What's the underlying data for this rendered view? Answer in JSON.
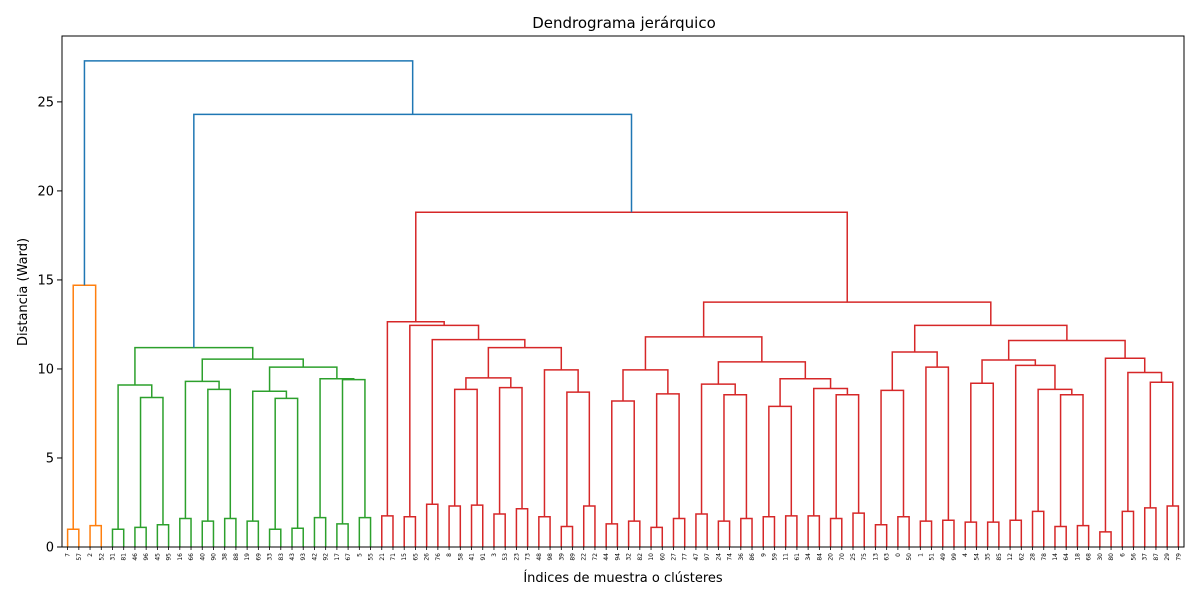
{
  "chart_data": {
    "type": "dendrogram",
    "title": "Dendrograma jerárquico",
    "xlabel": "Índices de muestra o clústeres",
    "ylabel": "Distancia (Ward)",
    "ylim": [
      0,
      28.7
    ],
    "yticks": [
      0,
      5,
      10,
      15,
      20,
      25
    ],
    "grid": false,
    "colors": {
      "orange": "#ff7f0e",
      "green": "#2ca02c",
      "red": "#d62728",
      "blue": "#1f77b4"
    },
    "leaves": [
      "7",
      "57",
      "2",
      "52",
      "31",
      "81",
      "46",
      "96",
      "45",
      "95",
      "16",
      "66",
      "40",
      "90",
      "38",
      "88",
      "19",
      "69",
      "33",
      "83",
      "43",
      "93",
      "42",
      "92",
      "17",
      "67",
      "5",
      "55",
      "21",
      "71",
      "15",
      "65",
      "26",
      "76",
      "8",
      "58",
      "41",
      "91",
      "3",
      "53",
      "23",
      "73",
      "48",
      "98",
      "39",
      "89",
      "22",
      "72",
      "44",
      "94",
      "32",
      "82",
      "10",
      "60",
      "27",
      "77",
      "47",
      "97",
      "24",
      "74",
      "36",
      "86",
      "9",
      "59",
      "11",
      "61",
      "34",
      "84",
      "20",
      "70",
      "25",
      "75",
      "13",
      "63",
      "0",
      "50",
      "1",
      "51",
      "49",
      "99",
      "4",
      "54",
      "35",
      "85",
      "12",
      "62",
      "28",
      "78",
      "14",
      "64",
      "18",
      "68",
      "30",
      "80",
      "6",
      "56",
      "37",
      "87",
      "29",
      "79"
    ],
    "merges": [
      {
        "l": 0,
        "r": 1,
        "h": 1.0,
        "c": "orange"
      },
      {
        "l": 2,
        "r": 3,
        "h": 1.2,
        "c": "orange"
      },
      {
        "l": 100,
        "r": 101,
        "h": 14.7,
        "c": "orange"
      },
      {
        "l": 4,
        "r": 5,
        "h": 1.0,
        "c": "green"
      },
      {
        "l": 6,
        "r": 7,
        "h": 1.1,
        "c": "green"
      },
      {
        "l": 8,
        "r": 9,
        "h": 1.25,
        "c": "green"
      },
      {
        "l": 104,
        "r": 105,
        "h": 8.4,
        "c": "green"
      },
      {
        "l": 103,
        "r": 106,
        "h": 9.1,
        "c": "green"
      },
      {
        "l": 10,
        "r": 11,
        "h": 1.6,
        "c": "green"
      },
      {
        "l": 12,
        "r": 13,
        "h": 1.45,
        "c": "green"
      },
      {
        "l": 14,
        "r": 15,
        "h": 1.6,
        "c": "green"
      },
      {
        "l": 109,
        "r": 110,
        "h": 8.85,
        "c": "green"
      },
      {
        "l": 108,
        "r": 111,
        "h": 9.3,
        "c": "green"
      },
      {
        "l": 16,
        "r": 17,
        "h": 1.45,
        "c": "green"
      },
      {
        "l": 18,
        "r": 19,
        "h": 1.0,
        "c": "green"
      },
      {
        "l": 20,
        "r": 21,
        "h": 1.05,
        "c": "green"
      },
      {
        "l": 114,
        "r": 115,
        "h": 8.35,
        "c": "green"
      },
      {
        "l": 113,
        "r": 116,
        "h": 8.75,
        "c": "green"
      },
      {
        "l": 22,
        "r": 23,
        "h": 1.65,
        "c": "green"
      },
      {
        "l": 24,
        "r": 25,
        "h": 1.3,
        "c": "green"
      },
      {
        "l": 26,
        "r": 27,
        "h": 1.65,
        "c": "green"
      },
      {
        "l": 119,
        "r": 120,
        "h": 9.4,
        "c": "green"
      },
      {
        "l": 118,
        "r": 121,
        "h": 9.45,
        "c": "green"
      },
      {
        "l": 117,
        "r": 122,
        "h": 10.1,
        "c": "green"
      },
      {
        "l": 112,
        "r": 123,
        "h": 10.55,
        "c": "green"
      },
      {
        "l": 107,
        "r": 124,
        "h": 11.2,
        "c": "green"
      },
      {
        "l": 28,
        "r": 29,
        "h": 1.75,
        "c": "red"
      },
      {
        "l": 30,
        "r": 31,
        "h": 1.7,
        "c": "red"
      },
      {
        "l": 32,
        "r": 33,
        "h": 2.4,
        "c": "red"
      },
      {
        "l": 34,
        "r": 35,
        "h": 2.3,
        "c": "red"
      },
      {
        "l": 36,
        "r": 37,
        "h": 2.35,
        "c": "red"
      },
      {
        "l": 129,
        "r": 130,
        "h": 8.85,
        "c": "red"
      },
      {
        "l": 38,
        "r": 39,
        "h": 1.85,
        "c": "red"
      },
      {
        "l": 40,
        "r": 41,
        "h": 2.15,
        "c": "red"
      },
      {
        "l": 132,
        "r": 133,
        "h": 8.95,
        "c": "red"
      },
      {
        "l": 131,
        "r": 134,
        "h": 9.5,
        "c": "red"
      },
      {
        "l": 42,
        "r": 43,
        "h": 1.7,
        "c": "red"
      },
      {
        "l": 44,
        "r": 45,
        "h": 1.15,
        "c": "red"
      },
      {
        "l": 46,
        "r": 47,
        "h": 2.3,
        "c": "red"
      },
      {
        "l": 137,
        "r": 138,
        "h": 8.7,
        "c": "red"
      },
      {
        "l": 136,
        "r": 139,
        "h": 9.95,
        "c": "red"
      },
      {
        "l": 135,
        "r": 140,
        "h": 11.2,
        "c": "red"
      },
      {
        "l": 128,
        "r": 141,
        "h": 11.65,
        "c": "red"
      },
      {
        "l": 127,
        "r": 142,
        "h": 12.45,
        "c": "red"
      },
      {
        "l": 126,
        "r": 143,
        "h": 12.65,
        "c": "red"
      },
      {
        "l": 48,
        "r": 49,
        "h": 1.3,
        "c": "red"
      },
      {
        "l": 50,
        "r": 51,
        "h": 1.45,
        "c": "red"
      },
      {
        "l": 145,
        "r": 146,
        "h": 8.2,
        "c": "red"
      },
      {
        "l": 52,
        "r": 53,
        "h": 1.1,
        "c": "red"
      },
      {
        "l": 54,
        "r": 55,
        "h": 1.6,
        "c": "red"
      },
      {
        "l": 148,
        "r": 149,
        "h": 8.6,
        "c": "red"
      },
      {
        "l": 147,
        "r": 150,
        "h": 9.95,
        "c": "red"
      },
      {
        "l": 56,
        "r": 57,
        "h": 1.85,
        "c": "red"
      },
      {
        "l": 58,
        "r": 59,
        "h": 1.45,
        "c": "red"
      },
      {
        "l": 60,
        "r": 61,
        "h": 1.6,
        "c": "red"
      },
      {
        "l": 153,
        "r": 154,
        "h": 8.55,
        "c": "red"
      },
      {
        "l": 152,
        "r": 155,
        "h": 9.15,
        "c": "red"
      },
      {
        "l": 62,
        "r": 63,
        "h": 1.7,
        "c": "red"
      },
      {
        "l": 64,
        "r": 65,
        "h": 1.75,
        "c": "red"
      },
      {
        "l": 157,
        "r": 158,
        "h": 7.9,
        "c": "red"
      },
      {
        "l": 66,
        "r": 67,
        "h": 1.75,
        "c": "red"
      },
      {
        "l": 68,
        "r": 69,
        "h": 1.6,
        "c": "red"
      },
      {
        "l": 70,
        "r": 71,
        "h": 1.9,
        "c": "red"
      },
      {
        "l": 161,
        "r": 162,
        "h": 8.55,
        "c": "red"
      },
      {
        "l": 160,
        "r": 163,
        "h": 8.9,
        "c": "red"
      },
      {
        "l": 159,
        "r": 164,
        "h": 9.45,
        "c": "red"
      },
      {
        "l": 156,
        "r": 165,
        "h": 10.4,
        "c": "red"
      },
      {
        "l": 151,
        "r": 166,
        "h": 11.8,
        "c": "red"
      },
      {
        "l": 72,
        "r": 73,
        "h": 1.25,
        "c": "red"
      },
      {
        "l": 74,
        "r": 75,
        "h": 1.7,
        "c": "red"
      },
      {
        "l": 168,
        "r": 169,
        "h": 8.8,
        "c": "red"
      },
      {
        "l": 76,
        "r": 77,
        "h": 1.45,
        "c": "red"
      },
      {
        "l": 78,
        "r": 79,
        "h": 1.5,
        "c": "red"
      },
      {
        "l": 171,
        "r": 172,
        "h": 10.1,
        "c": "red"
      },
      {
        "l": 170,
        "r": 173,
        "h": 10.95,
        "c": "red"
      },
      {
        "l": 80,
        "r": 81,
        "h": 1.4,
        "c": "red"
      },
      {
        "l": 82,
        "r": 83,
        "h": 1.4,
        "c": "red"
      },
      {
        "l": 175,
        "r": 176,
        "h": 9.2,
        "c": "red"
      },
      {
        "l": 84,
        "r": 85,
        "h": 1.5,
        "c": "red"
      },
      {
        "l": 86,
        "r": 87,
        "h": 2.0,
        "c": "red"
      },
      {
        "l": 88,
        "r": 89,
        "h": 1.15,
        "c": "red"
      },
      {
        "l": 90,
        "r": 91,
        "h": 1.2,
        "c": "red"
      },
      {
        "l": 180,
        "r": 181,
        "h": 8.55,
        "c": "red"
      },
      {
        "l": 179,
        "r": 182,
        "h": 8.85,
        "c": "red"
      },
      {
        "l": 178,
        "r": 183,
        "h": 10.2,
        "c": "red"
      },
      {
        "l": 177,
        "r": 184,
        "h": 10.5,
        "c": "red"
      },
      {
        "l": 92,
        "r": 93,
        "h": 0.85,
        "c": "red"
      },
      {
        "l": 94,
        "r": 95,
        "h": 2.0,
        "c": "red"
      },
      {
        "l": 96,
        "r": 97,
        "h": 2.2,
        "c": "red"
      },
      {
        "l": 98,
        "r": 99,
        "h": 2.3,
        "c": "red"
      },
      {
        "l": 188,
        "r": 189,
        "h": 9.25,
        "c": "red"
      },
      {
        "l": 187,
        "r": 190,
        "h": 9.8,
        "c": "red"
      },
      {
        "l": 186,
        "r": 191,
        "h": 10.6,
        "c": "red"
      },
      {
        "l": 185,
        "r": 192,
        "h": 11.6,
        "c": "red"
      },
      {
        "l": 174,
        "r": 193,
        "h": 12.45,
        "c": "red"
      },
      {
        "l": 167,
        "r": 194,
        "h": 13.75,
        "c": "red"
      },
      {
        "l": 144,
        "r": 195,
        "h": 18.8,
        "c": "red"
      },
      {
        "l": 125,
        "r": 196,
        "h": 24.3,
        "c": "blue"
      },
      {
        "l": 102,
        "r": 197,
        "h": 27.3,
        "c": "blue"
      }
    ]
  }
}
